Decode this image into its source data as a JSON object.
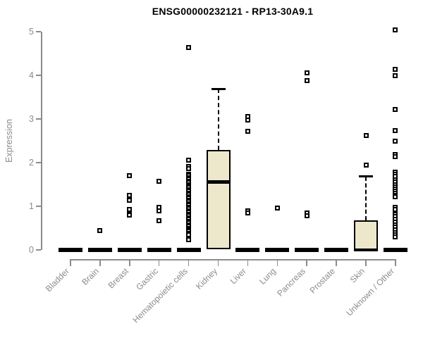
{
  "chart_data": {
    "type": "boxplot",
    "title": "ENSG00000232121 - RP13-30A9.1",
    "ylabel": "Expression",
    "xlabel": "",
    "ylim": [
      0,
      5
    ],
    "yticks": [
      0,
      1,
      2,
      3,
      4,
      5
    ],
    "grid": false,
    "legend": "none",
    "colors": {
      "box_fill": "#ede7cc",
      "box_border": "#000000",
      "axis": "#8b8b8b",
      "tick_label": "#8b8b8b",
      "title": "#000000",
      "background": "#ffffff"
    },
    "categories": [
      "Bladder",
      "Brain",
      "Breast",
      "Gastric",
      "Hematopoietic cells",
      "Kidney",
      "Liver",
      "Lung",
      "Pancreas",
      "Prostate",
      "Skin",
      "Unknown / Other"
    ],
    "series": [
      {
        "category": "Bladder",
        "median": 0,
        "q1": 0,
        "q3": 0,
        "whisker_low": 0,
        "whisker_high": 0,
        "outliers": []
      },
      {
        "category": "Brain",
        "median": 0,
        "q1": 0,
        "q3": 0,
        "whisker_low": 0,
        "whisker_high": 0,
        "outliers": [
          0.44
        ]
      },
      {
        "category": "Breast",
        "median": 0,
        "q1": 0,
        "q3": 0,
        "whisker_low": 0,
        "whisker_high": 0,
        "outliers": [
          1.7,
          1.25,
          1.13,
          0.92,
          0.83,
          0.8
        ]
      },
      {
        "category": "Gastric",
        "median": 0,
        "q1": 0,
        "q3": 0,
        "whisker_low": 0,
        "whisker_high": 0,
        "outliers": [
          1.57,
          0.98,
          0.9,
          0.67
        ]
      },
      {
        "category": "Hematopoietic cells",
        "median": 0,
        "q1": 0,
        "q3": 0,
        "whisker_low": 0,
        "whisker_high": 0,
        "outliers": [
          4.63,
          2.05,
          1.91,
          1.87,
          1.74,
          1.7,
          1.66,
          1.62,
          1.58,
          1.54,
          1.5,
          1.46,
          1.42,
          1.38,
          1.34,
          1.3,
          1.26,
          1.22,
          1.18,
          1.14,
          1.1,
          1.06,
          1.02,
          0.98,
          0.94,
          0.9,
          0.86,
          0.82,
          0.78,
          0.74,
          0.7,
          0.66,
          0.62,
          0.58,
          0.54,
          0.5,
          0.46,
          0.42,
          0.38,
          0.35,
          0.23
        ]
      },
      {
        "category": "Kidney",
        "median": 1.56,
        "q1": 0.02,
        "q3": 2.29,
        "whisker_low": 0,
        "whisker_high": 3.69,
        "outliers": []
      },
      {
        "category": "Liver",
        "median": 0,
        "q1": 0,
        "q3": 0,
        "whisker_low": 0,
        "whisker_high": 0,
        "outliers": [
          3.05,
          2.97,
          2.71,
          0.89,
          0.84
        ]
      },
      {
        "category": "Lung",
        "median": 0,
        "q1": 0,
        "q3": 0,
        "whisker_low": 0,
        "whisker_high": 0,
        "outliers": [
          0.96
        ]
      },
      {
        "category": "Pancreas",
        "median": 0,
        "q1": 0,
        "q3": 0,
        "whisker_low": 0,
        "whisker_high": 0,
        "outliers": [
          4.06,
          3.88,
          0.85,
          0.79
        ]
      },
      {
        "category": "Prostate",
        "median": 0,
        "q1": 0,
        "q3": 0,
        "whisker_low": 0,
        "whisker_high": 0,
        "outliers": []
      },
      {
        "category": "Skin",
        "median": 0,
        "q1": 0,
        "q3": 0.68,
        "whisker_low": 0,
        "whisker_high": 1.68,
        "outliers": [
          2.62,
          1.94
        ]
      },
      {
        "category": "Unknown / Other",
        "median": 0,
        "q1": 0,
        "q3": 0,
        "whisker_low": 0,
        "whisker_high": 0,
        "outliers": [
          5.04,
          4.14,
          4.0,
          3.21,
          2.73,
          2.5,
          2.19,
          2.13,
          1.79,
          1.73,
          1.68,
          1.6,
          1.55,
          1.5,
          1.45,
          1.4,
          1.35,
          1.3,
          1.25,
          1.21,
          0.98,
          0.92,
          0.82,
          0.76,
          0.7,
          0.64,
          0.58,
          0.52,
          0.46,
          0.4,
          0.34,
          0.3
        ]
      }
    ]
  }
}
